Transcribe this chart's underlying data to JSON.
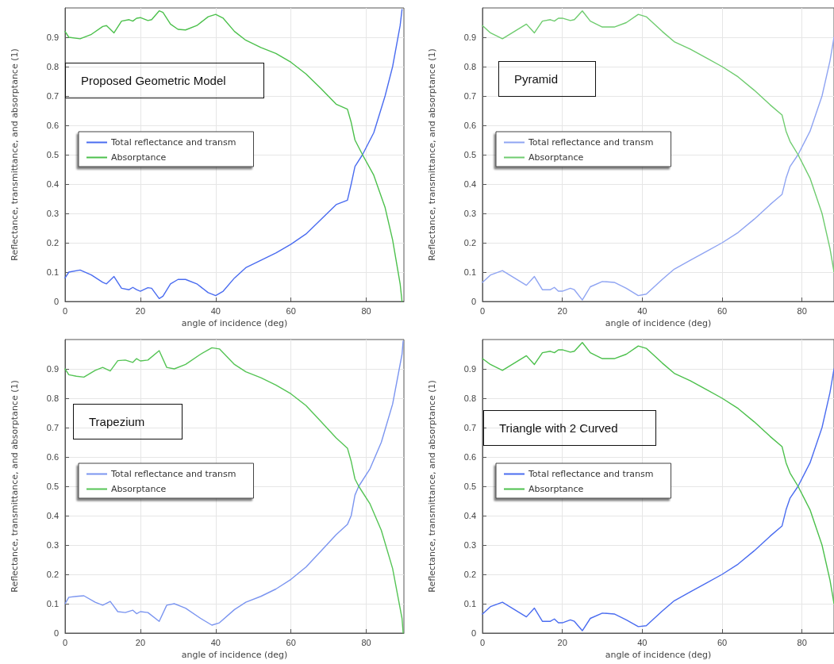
{
  "chart_data": [
    {
      "type": "line",
      "title": "Proposed Geometric Model",
      "xlabel": "angle of incidence (deg)",
      "ylabel": "Reflectance, transmittance, and absorptance (1)",
      "xlim": [
        0,
        90
      ],
      "ylim": [
        0,
        1
      ],
      "xticks": [
        0,
        20,
        40,
        60,
        80
      ],
      "yticks": [
        0,
        0.1,
        0.2,
        0.3,
        0.4,
        0.5,
        0.6,
        0.7,
        0.8,
        0.9
      ],
      "grid": true,
      "legend": "left",
      "marker": "none",
      "line_style": "solid",
      "x": [
        0,
        1,
        4,
        7,
        10,
        11,
        13,
        15,
        17,
        18,
        19,
        20,
        22,
        23,
        25,
        26,
        28,
        30,
        32,
        35,
        38,
        40,
        42,
        45,
        48,
        52,
        56,
        60,
        64,
        68,
        72,
        75,
        76,
        77,
        79,
        82,
        85,
        87,
        89,
        89.5
      ],
      "series": [
        {
          "name": "Total reflectance and transm",
          "color": "#4a6cf0",
          "values": [
            0.08,
            0.1,
            0.107,
            0.09,
            0.065,
            0.06,
            0.085,
            0.045,
            0.04,
            0.048,
            0.04,
            0.035,
            0.047,
            0.045,
            0.01,
            0.018,
            0.06,
            0.075,
            0.075,
            0.06,
            0.03,
            0.02,
            0.035,
            0.08,
            0.115,
            0.14,
            0.165,
            0.195,
            0.23,
            0.28,
            0.33,
            0.345,
            0.4,
            0.46,
            0.5,
            0.575,
            0.7,
            0.8,
            0.94,
            0.995
          ]
        },
        {
          "name": "Absorptance",
          "color": "#4cc04c",
          "values": [
            0.92,
            0.9,
            0.895,
            0.91,
            0.937,
            0.94,
            0.915,
            0.955,
            0.96,
            0.955,
            0.965,
            0.967,
            0.957,
            0.96,
            0.99,
            0.985,
            0.945,
            0.927,
            0.925,
            0.94,
            0.97,
            0.978,
            0.965,
            0.92,
            0.89,
            0.865,
            0.845,
            0.815,
            0.775,
            0.725,
            0.672,
            0.655,
            0.61,
            0.55,
            0.5,
            0.43,
            0.32,
            0.21,
            0.06,
            0
          ]
        }
      ]
    },
    {
      "type": "line",
      "title": "Pyramid",
      "xlabel": "angle of incidence (deg)",
      "ylabel": "Reflectance, transmittance, and absorptance (1)",
      "xlim": [
        0,
        88
      ],
      "ylim": [
        0,
        1
      ],
      "xticks": [
        0,
        20,
        40,
        60,
        80
      ],
      "yticks": [
        0,
        0.1,
        0.2,
        0.3,
        0.4,
        0.5,
        0.6,
        0.7,
        0.8,
        0.9
      ],
      "grid": true,
      "legend": "left",
      "marker": "none",
      "line_style": "solid",
      "x": [
        0,
        2,
        5,
        8,
        11,
        13,
        15,
        17,
        18,
        19,
        20,
        22,
        23,
        25,
        27,
        30,
        33,
        36,
        39,
        41,
        45,
        48,
        52,
        56,
        60,
        64,
        68,
        72,
        75,
        76,
        77,
        79,
        82,
        85,
        87,
        88
      ],
      "series": [
        {
          "name": "Total reflectance and transm",
          "color": "#8fa4f2",
          "values": [
            0.065,
            0.09,
            0.105,
            0.08,
            0.055,
            0.085,
            0.04,
            0.04,
            0.048,
            0.035,
            0.035,
            0.045,
            0.04,
            0.005,
            0.05,
            0.068,
            0.065,
            0.045,
            0.02,
            0.025,
            0.075,
            0.11,
            0.14,
            0.17,
            0.2,
            0.235,
            0.28,
            0.33,
            0.365,
            0.42,
            0.46,
            0.5,
            0.58,
            0.7,
            0.82,
            0.9
          ]
        },
        {
          "name": "Absorptance",
          "color": "#6fcc6f",
          "values": [
            0.94,
            0.915,
            0.895,
            0.92,
            0.945,
            0.915,
            0.955,
            0.96,
            0.955,
            0.965,
            0.965,
            0.957,
            0.96,
            0.99,
            0.955,
            0.935,
            0.935,
            0.95,
            0.978,
            0.97,
            0.92,
            0.885,
            0.86,
            0.83,
            0.8,
            0.765,
            0.72,
            0.67,
            0.635,
            0.58,
            0.545,
            0.5,
            0.42,
            0.3,
            0.18,
            0.1
          ]
        }
      ]
    },
    {
      "type": "line",
      "title": "Trapezium",
      "xlabel": "angle of incidence (deg)",
      "ylabel": "Reflectance, transmittance, and absorptance (1)",
      "xlim": [
        0,
        90
      ],
      "ylim": [
        0,
        1
      ],
      "xticks": [
        0,
        20,
        40,
        60,
        80
      ],
      "yticks": [
        0,
        0.1,
        0.2,
        0.3,
        0.4,
        0.5,
        0.6,
        0.7,
        0.8,
        0.9
      ],
      "grid": true,
      "legend": "left",
      "marker": "none",
      "line_style": "solid",
      "x": [
        0,
        1,
        3,
        5,
        8,
        10,
        12,
        14,
        16,
        18,
        19,
        20,
        22,
        25,
        27,
        29,
        32,
        36,
        39,
        41,
        45,
        48,
        52,
        56,
        60,
        64,
        68,
        72,
        75,
        76,
        77,
        78,
        81,
        84,
        87,
        89.5,
        89.8
      ],
      "series": [
        {
          "name": "Total reflectance and transm",
          "color": "#7b95f0",
          "values": [
            0.1,
            0.122,
            0.125,
            0.127,
            0.105,
            0.095,
            0.108,
            0.073,
            0.07,
            0.078,
            0.066,
            0.073,
            0.07,
            0.04,
            0.095,
            0.1,
            0.085,
            0.05,
            0.027,
            0.035,
            0.08,
            0.105,
            0.125,
            0.15,
            0.183,
            0.225,
            0.28,
            0.335,
            0.37,
            0.4,
            0.47,
            0.5,
            0.56,
            0.65,
            0.78,
            0.95,
            0.995
          ]
        },
        {
          "name": "Absorptance",
          "color": "#55c455",
          "values": [
            0.9,
            0.88,
            0.875,
            0.872,
            0.895,
            0.905,
            0.893,
            0.928,
            0.93,
            0.922,
            0.935,
            0.927,
            0.93,
            0.962,
            0.905,
            0.9,
            0.915,
            0.95,
            0.972,
            0.968,
            0.915,
            0.89,
            0.87,
            0.845,
            0.815,
            0.775,
            0.72,
            0.665,
            0.63,
            0.585,
            0.525,
            0.5,
            0.44,
            0.35,
            0.22,
            0.05,
            0
          ]
        }
      ]
    },
    {
      "type": "line",
      "title": "Triangle with 2 Curved",
      "xlabel": "angle of incidence (deg)",
      "ylabel": "Reflectance, transmittance, and absorptance (1)",
      "xlim": [
        0,
        88
      ],
      "ylim": [
        0,
        1
      ],
      "xticks": [
        0,
        20,
        40,
        60,
        80
      ],
      "yticks": [
        0,
        0.1,
        0.2,
        0.3,
        0.4,
        0.5,
        0.6,
        0.7,
        0.8,
        0.9
      ],
      "grid": true,
      "legend": "left",
      "marker": "none",
      "line_style": "solid",
      "x": [
        0,
        2,
        5,
        8,
        11,
        13,
        15,
        17,
        18,
        19,
        20,
        22,
        23,
        25,
        27,
        30,
        33,
        36,
        39,
        41,
        45,
        48,
        52,
        56,
        60,
        64,
        68,
        72,
        75,
        76,
        77,
        79,
        82,
        85,
        87,
        88
      ],
      "series": [
        {
          "name": "Total reflectance and transm",
          "color": "#4a6cf0",
          "values": [
            0.065,
            0.09,
            0.105,
            0.08,
            0.055,
            0.085,
            0.04,
            0.04,
            0.048,
            0.035,
            0.035,
            0.045,
            0.04,
            0.008,
            0.05,
            0.068,
            0.065,
            0.045,
            0.022,
            0.025,
            0.075,
            0.11,
            0.14,
            0.17,
            0.2,
            0.235,
            0.28,
            0.33,
            0.365,
            0.42,
            0.46,
            0.5,
            0.58,
            0.7,
            0.82,
            0.9
          ]
        },
        {
          "name": "Absorptance",
          "color": "#4cc04c",
          "values": [
            0.935,
            0.915,
            0.895,
            0.92,
            0.945,
            0.915,
            0.955,
            0.96,
            0.955,
            0.965,
            0.965,
            0.957,
            0.96,
            0.99,
            0.955,
            0.935,
            0.935,
            0.95,
            0.978,
            0.97,
            0.92,
            0.885,
            0.86,
            0.83,
            0.8,
            0.765,
            0.72,
            0.67,
            0.635,
            0.58,
            0.545,
            0.5,
            0.42,
            0.3,
            0.18,
            0.1
          ]
        }
      ]
    }
  ]
}
